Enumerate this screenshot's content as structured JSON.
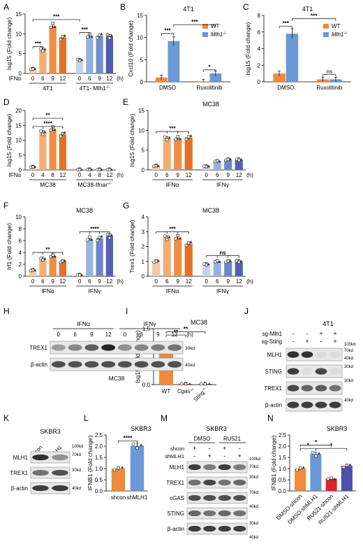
{
  "panel_letters": [
    "A",
    "B",
    "C",
    "D",
    "E",
    "F",
    "G",
    "H",
    "I",
    "J",
    "K",
    "L",
    "M",
    "N"
  ],
  "colors": {
    "wt": "#ee8a3a",
    "mlh1_ko": "#6b98d6",
    "orange_grad": [
      "#f4c9a3",
      "#f3ad74",
      "#ee8e45",
      "#e2722b"
    ],
    "blue_grad": [
      "#c2d3ee",
      "#8fb0e0",
      "#6f90d0",
      "#4b5fb0"
    ],
    "purple_grad": [
      "#c4d2ee",
      "#9bb2e0",
      "#6f85cb",
      "#5560b4"
    ],
    "red": "#d9262c",
    "navy": "#4d4fae"
  },
  "chart_data": [
    {
      "panel": "A",
      "type": "bar",
      "title": "",
      "ylabel": "Isg15 (Fold change)",
      "ylim": [
        0,
        15
      ],
      "yticks": [
        0,
        5,
        10,
        15
      ],
      "categories": [
        "0",
        "6",
        "9",
        "12",
        "0",
        "6",
        "9",
        "12"
      ],
      "values": [
        1.1,
        6.0,
        12.0,
        9.1,
        3.4,
        9.5,
        9.5,
        9.4
      ],
      "xunit": "(h)",
      "row_label": "IFNα",
      "groups": [
        {
          "label": "4T1",
          "span": [
            0,
            3
          ]
        },
        {
          "label": "4T1- Mlh1",
          "sup": "-/-",
          "span": [
            4,
            7
          ]
        }
      ],
      "sig": [
        {
          "from": 0,
          "to": 1,
          "y": 6.8,
          "text": "***"
        },
        {
          "from": 0,
          "to": 4,
          "y": 13.6,
          "text": "***"
        },
        {
          "from": 4,
          "to": 5,
          "y": 10.3,
          "text": "***"
        }
      ]
    },
    {
      "panel": "B",
      "type": "bar",
      "title": "4T1",
      "ylabel": "Cxcl10 (Fold change)",
      "ylim": [
        0,
        15
      ],
      "yticks": [
        0,
        5,
        10,
        15
      ],
      "categories": [
        "DMSO",
        "Ruxolitinib"
      ],
      "series": [
        {
          "name": "WT",
          "values": [
            1.0,
            0.1
          ]
        },
        {
          "name": "Mlh1",
          "sup": "-/-",
          "values": [
            9.2,
            1.9
          ]
        }
      ],
      "sig": [
        {
          "pair": [
            [
              0,
              0
            ],
            [
              0,
              1
            ]
          ],
          "y": 10.9,
          "text": "***"
        },
        {
          "pair": [
            [
              0,
              1
            ],
            [
              1,
              1
            ]
          ],
          "y": 12.9,
          "text": "***"
        },
        {
          "pair": [
            [
              1,
              0
            ],
            [
              1,
              1
            ]
          ],
          "y": 2.7,
          "text": "*"
        }
      ]
    },
    {
      "panel": "C",
      "type": "bar",
      "title": "4T1",
      "ylabel": "Isg15 (Fold change)",
      "ylim": [
        0,
        8
      ],
      "yticks": [
        0,
        2,
        4,
        6,
        8
      ],
      "categories": [
        "DMSO",
        "Ruxolitinib"
      ],
      "series": [
        {
          "name": "WT",
          "values": [
            1.0,
            0.3
          ]
        },
        {
          "name": "Mlh1",
          "sup": "-/-",
          "values": [
            5.8,
            0.3
          ]
        }
      ],
      "sig": [
        {
          "pair": [
            [
              0,
              0
            ],
            [
              0,
              1
            ]
          ],
          "y": 6.7,
          "text": "***"
        },
        {
          "pair": [
            [
              0,
              1
            ],
            [
              1,
              1
            ]
          ],
          "y": 7.6,
          "text": "***"
        },
        {
          "pair": [
            [
              1,
              0
            ],
            [
              1,
              1
            ]
          ],
          "y": 0.9,
          "text": "ns"
        }
      ]
    },
    {
      "panel": "D",
      "type": "bar",
      "title": "",
      "ylabel": "Isg15 (Fold change)",
      "ylim": [
        0,
        20
      ],
      "yticks": [
        0,
        5,
        10,
        15,
        20
      ],
      "categories": [
        "0",
        "4",
        "8",
        "12",
        "0",
        "4",
        "8",
        "12"
      ],
      "values": [
        1.0,
        12.6,
        13.8,
        12.0,
        0.1,
        0.1,
        0.1,
        0.1
      ],
      "xunit": "(h)",
      "row_label": "IFNα",
      "groups": [
        {
          "label": "MC38",
          "span": [
            0,
            3
          ]
        },
        {
          "label": "MC38-Ifnar",
          "sup": "-/-",
          "span": [
            4,
            7
          ]
        }
      ],
      "sig": [
        {
          "from": 0,
          "to": 3,
          "y": 14.6,
          "text": "****",
          "ticks": [
            1,
            2,
            3
          ]
        },
        {
          "from": 0,
          "to": 3,
          "y": 17.4,
          "text": "**"
        }
      ]
    },
    {
      "panel": "E",
      "type": "bar",
      "title": "MC38",
      "ylabel": "Isg15 (Fold change)",
      "ylim": [
        0,
        15
      ],
      "yticks": [
        0,
        5,
        10,
        15
      ],
      "categories": [
        "0",
        "6",
        "9",
        "12",
        "0",
        "6",
        "9",
        "12"
      ],
      "values": [
        1.0,
        8.0,
        8.0,
        8.2,
        0.9,
        2.2,
        2.6,
        2.6
      ],
      "xunit": "(h)",
      "groups": [
        {
          "label": "IFNα",
          "span": [
            0,
            3
          ]
        },
        {
          "label": "IFNγ",
          "span": [
            4,
            7
          ]
        }
      ],
      "sig": [
        {
          "from": 0,
          "to": 3,
          "y": 9.7,
          "text": "***",
          "ticks": [
            1,
            2,
            3
          ]
        }
      ]
    },
    {
      "panel": "F",
      "type": "bar",
      "title": "MC38",
      "ylabel": "Irf1 (Fold change)",
      "ylim": [
        0,
        10
      ],
      "yticks": [
        0,
        2,
        4,
        6,
        8,
        10
      ],
      "categories": [
        "0",
        "6",
        "9",
        "12",
        "0",
        "6",
        "9",
        "12"
      ],
      "values": [
        1.0,
        2.9,
        3.4,
        2.5,
        0.2,
        6.3,
        6.4,
        6.8
      ],
      "xunit": "(h)",
      "groups": [
        {
          "label": "IFNα",
          "span": [
            0,
            3
          ]
        },
        {
          "label": "IFNγ",
          "span": [
            4,
            7
          ]
        }
      ],
      "sig": [
        {
          "from": 0,
          "to": 3,
          "y": 4.0,
          "text": "**",
          "ticks": [
            1,
            2,
            3
          ]
        },
        {
          "from": 4,
          "to": 7,
          "y": 7.5,
          "text": "****",
          "ticks": [
            5,
            6,
            7
          ]
        }
      ]
    },
    {
      "panel": "G",
      "type": "bar",
      "title": "MC38",
      "ylabel": "Trex1 (Fold change)",
      "ylim": [
        0,
        4
      ],
      "yticks": [
        0,
        1,
        2,
        3,
        4
      ],
      "categories": [
        "0",
        "6",
        "9",
        "12",
        "0",
        "6",
        "9",
        "12"
      ],
      "values": [
        1.0,
        2.6,
        2.6,
        2.2,
        0.8,
        1.0,
        1.0,
        1.0
      ],
      "xunit": "(h)",
      "groups": [
        {
          "label": "IFNα",
          "span": [
            0,
            3
          ]
        },
        {
          "label": "IFNγ",
          "span": [
            4,
            7
          ]
        }
      ],
      "sig": [
        {
          "from": 0,
          "to": 3,
          "y": 3.0,
          "text": "***",
          "ticks": [
            1,
            2,
            3
          ]
        },
        {
          "from": 4,
          "to": 7,
          "y": 1.4,
          "text": "ns",
          "ticks": [
            5,
            6,
            7
          ]
        }
      ]
    },
    {
      "panel": "I",
      "type": "bar",
      "title": "MC38",
      "ylabel": "Isg15 (Fold change)",
      "ylim": [
        0,
        1.5
      ],
      "yticks": [
        0.0,
        0.5,
        1.0,
        1.5
      ],
      "categories": [
        "WT",
        "Cgas",
        "Sting"
      ],
      "category_sups": [
        "",
        "-/-",
        "-/-"
      ],
      "values": [
        1.02,
        0.02,
        0.02
      ],
      "sig": [
        {
          "from": 0,
          "to": 1,
          "y": 1.33,
          "text": "**"
        },
        {
          "from": 0,
          "to": 2,
          "y": 1.42,
          "text": "**"
        }
      ]
    },
    {
      "panel": "L",
      "type": "bar",
      "title": "SKBR3",
      "ylabel": "IFNB1 (Fold change)",
      "ylim": [
        0,
        2.5
      ],
      "yticks": [
        0.0,
        0.5,
        1.0,
        1.5,
        2.0,
        2.5
      ],
      "categories": [
        "shcon",
        "shMLH1"
      ],
      "values": [
        1.0,
        2.02
      ],
      "sig": [
        {
          "from": 0,
          "to": 1,
          "y": 2.24,
          "text": "****"
        }
      ]
    },
    {
      "panel": "N",
      "type": "bar",
      "title": "SKBR3",
      "ylabel": "IFNB1 (Fold change)",
      "ylim": [
        0,
        2.5
      ],
      "yticks": [
        0.0,
        0.5,
        1.0,
        1.5,
        2.0,
        2.5
      ],
      "categories": [
        "DMSO-shcon",
        "DMSO-shMLH1",
        "RU521-shcon",
        "RU521-shMLH1"
      ],
      "values": [
        1.0,
        1.65,
        0.55,
        1.12
      ],
      "sig": [
        {
          "from": 0,
          "to": 1,
          "y": 1.9,
          "text": "*"
        },
        {
          "from": 0,
          "to": 2,
          "y": 2.05,
          "text": "*"
        },
        {
          "from": 1,
          "to": 3,
          "y": 1.9,
          "text": "*"
        }
      ]
    }
  ],
  "blots": {
    "H": {
      "treatments": [
        "IFNα",
        "IFNγ"
      ],
      "timepoints": [
        "0",
        "6",
        "9",
        "12",
        "0",
        "6",
        "9",
        "12"
      ],
      "unit": "(h)",
      "rows": [
        "TREX1",
        "β-actin"
      ],
      "markers": [
        "30kd",
        "40kd"
      ],
      "cell_line": "MC38",
      "intensities": [
        [
          0.35,
          0.45,
          0.65,
          0.9,
          0.4,
          0.45,
          0.5,
          0.55
        ],
        [
          0.7,
          0.7,
          0.7,
          0.72,
          0.7,
          0.7,
          0.7,
          0.7
        ]
      ]
    },
    "J": {
      "title": "4T1",
      "row_labels": [
        "sg-Mlh1",
        "sg-Sting"
      ],
      "signs": [
        [
          "-",
          "-",
          "+",
          "+"
        ],
        [
          "-",
          "+",
          "-",
          "+"
        ]
      ],
      "rows": [
        "MLH1",
        "STING",
        "TREX1",
        "β-actin"
      ],
      "markers": [
        "100kd",
        "70kd",
        "40kd",
        "30kd",
        "30kd",
        "40kd"
      ],
      "intensities": [
        [
          0.85,
          0.85,
          0.05,
          0.05
        ],
        [
          0.8,
          0.05,
          0.75,
          0.05
        ],
        [
          0.75,
          0.6,
          0.65,
          0.55
        ],
        [
          0.8,
          0.8,
          0.8,
          0.8
        ]
      ]
    },
    "K": {
      "title": "SKBR3",
      "lanes": [
        "shcon",
        "shMLH1"
      ],
      "rows": [
        "MLH1",
        "TREX1",
        "β-actin"
      ],
      "markers": [
        "100kd",
        "70kd",
        "30kd",
        "40kd"
      ],
      "intensities": [
        [
          0.85,
          0.4
        ],
        [
          0.55,
          0.7
        ],
        [
          0.8,
          0.8
        ]
      ]
    },
    "M": {
      "title": "SKBR3",
      "treatments": [
        "DMSO",
        "RU521"
      ],
      "row_labels": [
        "shcon",
        "shMLH1"
      ],
      "signs": [
        [
          "+",
          "-",
          "+",
          "-"
        ],
        [
          "-",
          "+",
          "-",
          "+"
        ]
      ],
      "rows": [
        "MLH1",
        "TREX1",
        "cGAS",
        "STING",
        "β-actin"
      ],
      "markers": [
        "100kd",
        "70kd",
        "30kd",
        "70kd",
        "40kd",
        "30kd",
        "40kd"
      ],
      "intensities": [
        [
          0.8,
          0.5,
          0.8,
          0.5
        ],
        [
          0.55,
          0.75,
          0.55,
          0.6
        ],
        [
          0.7,
          0.7,
          0.7,
          0.7
        ],
        [
          0.6,
          0.55,
          0.6,
          0.55
        ],
        [
          0.8,
          0.8,
          0.8,
          0.8
        ]
      ]
    }
  }
}
